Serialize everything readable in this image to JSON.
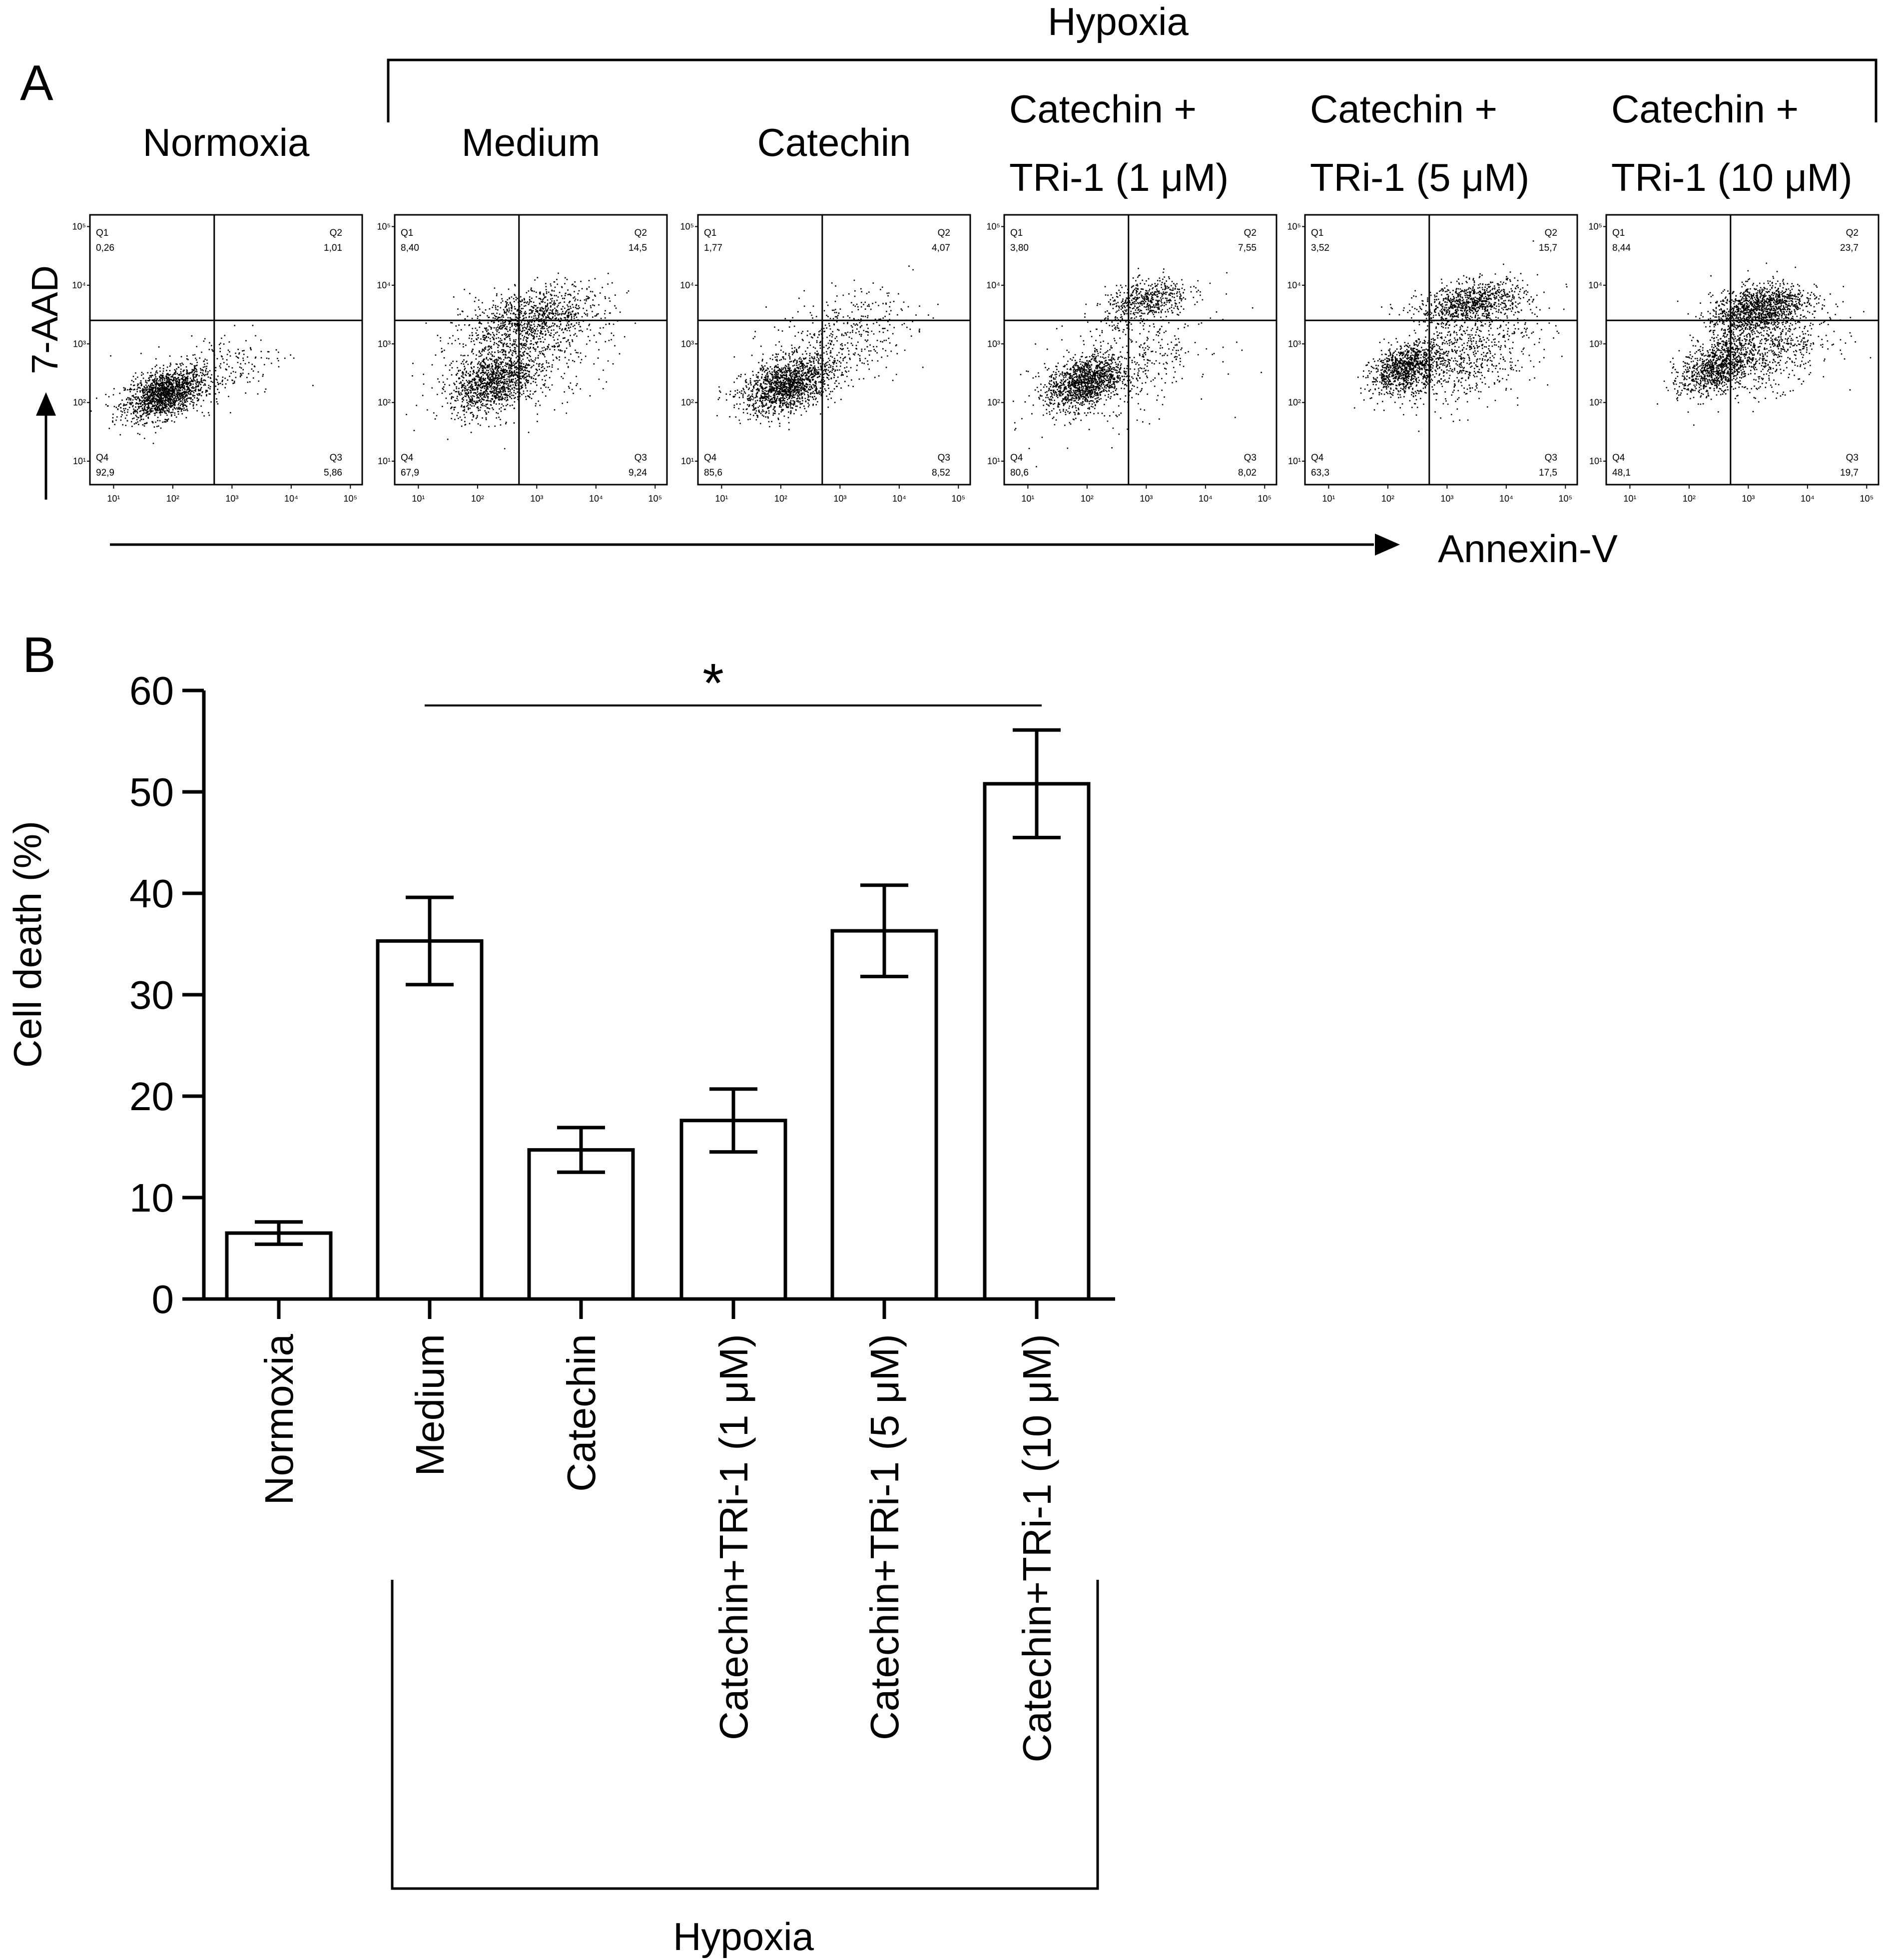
{
  "panel_a": {
    "label": "A",
    "group_label": "Hypoxia",
    "y_axis_label": "7-AAD",
    "x_axis_label": "Annexin-V",
    "axis_ticks": [
      "10¹",
      "10²",
      "10³",
      "10⁴",
      "10⁵"
    ],
    "plots": [
      {
        "title_lines": [
          "Normoxia"
        ],
        "q1": "0,26",
        "q2": "1,01",
        "q3": "5,86",
        "q4": "92,9",
        "clusters": [
          {
            "x": 1.85,
            "y": 2.15,
            "sx": 0.33,
            "sy": 0.28,
            "n": 1600
          },
          {
            "x": 2.8,
            "y": 2.6,
            "sx": 0.55,
            "sy": 0.45,
            "n": 220
          }
        ]
      },
      {
        "title_lines": [
          "Medium"
        ],
        "q1": "8,40",
        "q2": "14,5",
        "q3": "9,24",
        "q4": "67,9",
        "clusters": [
          {
            "x": 2.25,
            "y": 2.35,
            "sx": 0.35,
            "sy": 0.35,
            "n": 1100
          },
          {
            "x": 2.9,
            "y": 3.45,
            "sx": 0.55,
            "sy": 0.35,
            "n": 900
          },
          {
            "x": 2.7,
            "y": 2.8,
            "sx": 0.75,
            "sy": 0.65,
            "n": 600
          }
        ]
      },
      {
        "title_lines": [
          "Catechin"
        ],
        "q1": "1,77",
        "q2": "4,07",
        "q3": "8,52",
        "q4": "85,6",
        "clusters": [
          {
            "x": 2.1,
            "y": 2.3,
            "sx": 0.38,
            "sy": 0.32,
            "n": 1500
          },
          {
            "x": 3.0,
            "y": 3.1,
            "sx": 0.6,
            "sy": 0.55,
            "n": 450
          }
        ]
      },
      {
        "title_lines": [
          "Catechin +",
          "TRi-1 (1 μM)"
        ],
        "q1": "3,80",
        "q2": "7,55",
        "q3": "8,02",
        "q4": "80,6",
        "clusters": [
          {
            "x": 1.95,
            "y": 2.35,
            "sx": 0.32,
            "sy": 0.3,
            "n": 1300
          },
          {
            "x": 3.0,
            "y": 3.75,
            "sx": 0.35,
            "sy": 0.25,
            "n": 500
          },
          {
            "x": 2.7,
            "y": 2.7,
            "sx": 0.7,
            "sy": 0.7,
            "n": 450
          }
        ]
      },
      {
        "title_lines": [
          "Catechin +",
          "TRi-1 (5 μM)"
        ],
        "q1": "3,52",
        "q2": "15,7",
        "q3": "17,5",
        "q4": "63,3",
        "clusters": [
          {
            "x": 2.3,
            "y": 2.6,
            "sx": 0.3,
            "sy": 0.28,
            "n": 1000
          },
          {
            "x": 3.4,
            "y": 3.7,
            "sx": 0.45,
            "sy": 0.25,
            "n": 900
          },
          {
            "x": 3.3,
            "y": 2.8,
            "sx": 0.6,
            "sy": 0.55,
            "n": 700
          }
        ]
      },
      {
        "title_lines": [
          "Catechin +",
          "TRi-1 (10 μM)"
        ],
        "q1": "8,44",
        "q2": "23,7",
        "q3": "19,7",
        "q4": "48,1",
        "clusters": [
          {
            "x": 2.45,
            "y": 2.6,
            "sx": 0.3,
            "sy": 0.3,
            "n": 900
          },
          {
            "x": 3.15,
            "y": 3.6,
            "sx": 0.4,
            "sy": 0.3,
            "n": 1300
          },
          {
            "x": 3.3,
            "y": 2.9,
            "sx": 0.55,
            "sy": 0.5,
            "n": 700
          }
        ]
      }
    ]
  },
  "panel_b": {
    "label": "B",
    "significance": "*",
    "group_label": "Hypoxia"
  },
  "chart_data": {
    "type": "bar",
    "title": "",
    "xlabel": "",
    "ylabel": "Cell death (%)",
    "categories": [
      "Normoxia",
      "Medium",
      "Catechin",
      "Catechin+TRi-1 (1 μM)",
      "Catechin+TRi-1 (5 μM)",
      "Catechin+TRi-1 (10 μM)"
    ],
    "values": [
      6.5,
      35.3,
      14.7,
      17.6,
      36.3,
      50.8
    ],
    "error": [
      1.1,
      4.3,
      2.2,
      3.1,
      4.5,
      5.3
    ],
    "ylim": [
      0,
      60
    ],
    "yticks": [
      0,
      10,
      20,
      30,
      40,
      50,
      60
    ],
    "significance_bracket": {
      "from": "Medium",
      "to": "Catechin+TRi-1 (10 μM)",
      "label": "*"
    }
  },
  "colors": {
    "ink": "#000000",
    "bar_fill": "#ffffff",
    "dot": "#000000"
  }
}
